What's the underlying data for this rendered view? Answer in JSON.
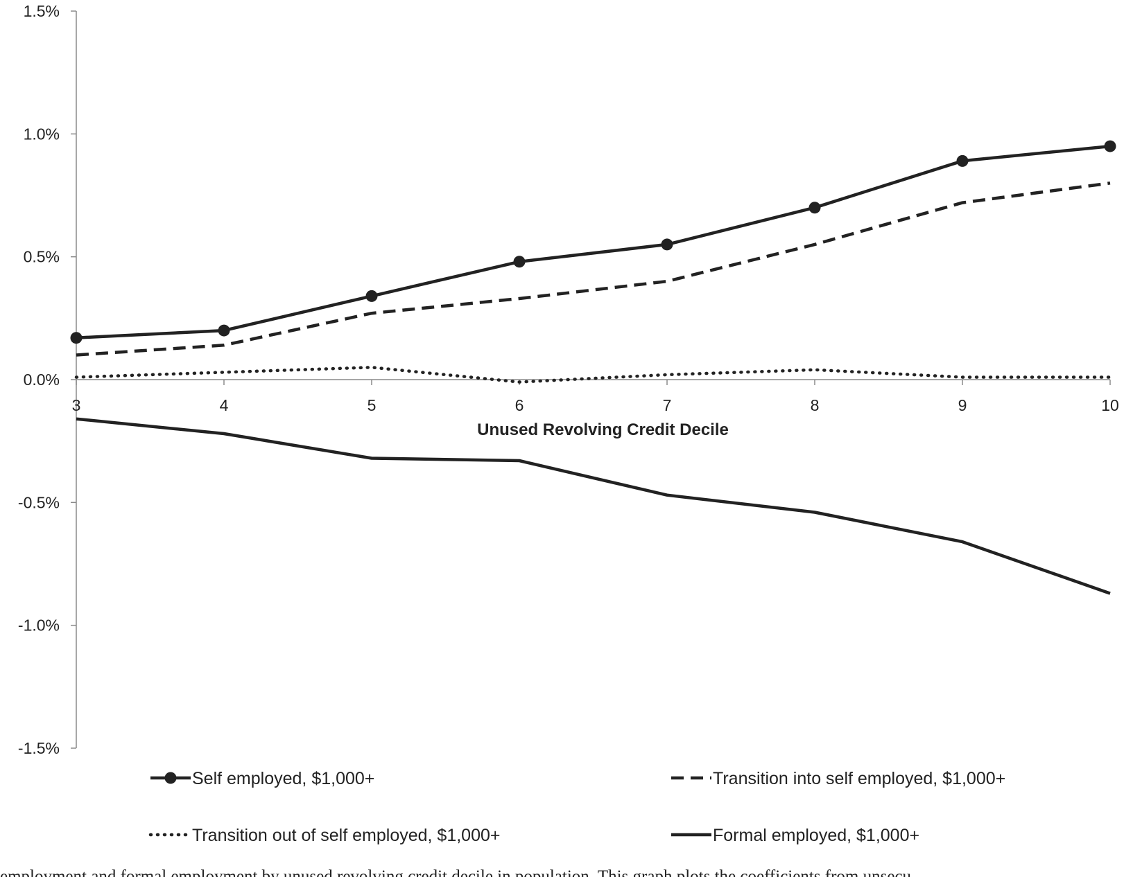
{
  "chart_data": {
    "type": "line",
    "xlabel": "Unused Revolving Credit Decile",
    "ylabel": "",
    "x": [
      3,
      4,
      5,
      6,
      7,
      8,
      9,
      10
    ],
    "xticks": [
      "3",
      "4",
      "5",
      "6",
      "7",
      "8",
      "9",
      "10"
    ],
    "ylim": [
      -0.015,
      0.015
    ],
    "yticks": [
      {
        "value": 0.015,
        "label": "1.5%"
      },
      {
        "value": 0.01,
        "label": "1.0%"
      },
      {
        "value": 0.005,
        "label": "0.5%"
      },
      {
        "value": 0.0,
        "label": "0.0%"
      },
      {
        "value": -0.005,
        "label": "-0.5%"
      },
      {
        "value": -0.01,
        "label": "-1.0%"
      },
      {
        "value": -0.015,
        "label": "-1.5%"
      }
    ],
    "grid": false,
    "legend_position": "bottom",
    "series": [
      {
        "name": "Self employed, $1,000+",
        "style": "solid-marker",
        "values": [
          0.0017,
          0.002,
          0.0034,
          0.0048,
          0.0055,
          0.007,
          0.0089,
          0.0095
        ]
      },
      {
        "name": "Transition into self employed, $1,000+",
        "style": "dashed",
        "values": [
          0.001,
          0.0014,
          0.0027,
          0.0033,
          0.004,
          0.0055,
          0.0072,
          0.008
        ]
      },
      {
        "name": "Transition out of self employed, $1,000+",
        "style": "dotted",
        "values": [
          0.0001,
          0.0003,
          0.0005,
          -0.0001,
          0.0002,
          0.0004,
          0.0001,
          0.0001
        ]
      },
      {
        "name": "Formal employed, $1,000+",
        "style": "solid",
        "values": [
          -0.0016,
          -0.0022,
          -0.0032,
          -0.0033,
          -0.0047,
          -0.0054,
          -0.0066,
          -0.0087
        ]
      }
    ]
  },
  "caption": "employment and formal employment by unused revolving credit decile in population. This graph plots the coefficients from unsecu"
}
